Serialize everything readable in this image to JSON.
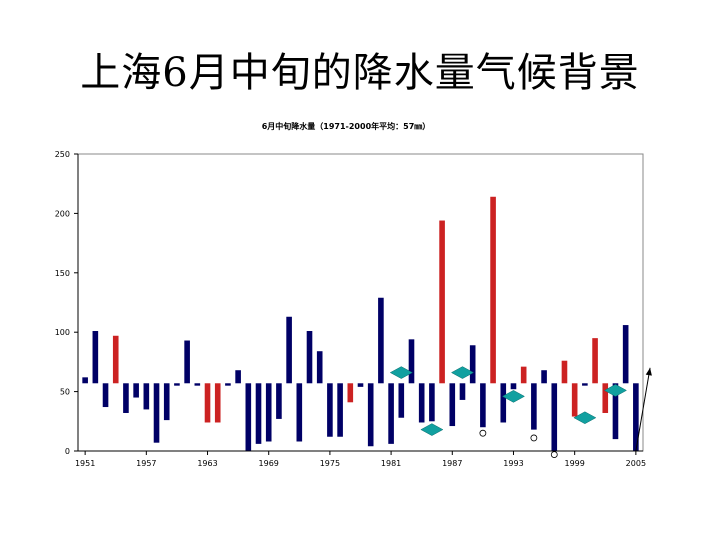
{
  "slide_title": "上海6月中旬的降水量气候背景",
  "colors": {
    "bar_normal": "#000066",
    "bar_highlight": "#cc2222",
    "marker_diamond": "#11a0a0",
    "axis": "#000000"
  },
  "chart_data": {
    "type": "bar",
    "title": "6月中旬降水量（1971-2000年平均：57㎜）",
    "baseline": 57,
    "ylim": [
      0,
      250
    ],
    "yticks": [
      0,
      50,
      100,
      150,
      200,
      250
    ],
    "xticks": [
      1951,
      1957,
      1963,
      1969,
      1975,
      1981,
      1987,
      1993,
      1999,
      2005
    ],
    "x": [
      1951,
      1952,
      1953,
      1954,
      1955,
      1956,
      1957,
      1958,
      1959,
      1960,
      1961,
      1962,
      1963,
      1964,
      1965,
      1966,
      1967,
      1968,
      1969,
      1970,
      1971,
      1972,
      1973,
      1974,
      1975,
      1976,
      1977,
      1978,
      1979,
      1980,
      1981,
      1982,
      1983,
      1984,
      1985,
      1986,
      1987,
      1988,
      1989,
      1990,
      1991,
      1992,
      1993,
      1994,
      1995,
      1996,
      1997,
      1998,
      1999,
      2000,
      2001,
      2002,
      2003,
      2004,
      2005
    ],
    "values": [
      62,
      101,
      37,
      97,
      32,
      45,
      35,
      7,
      26,
      55,
      93,
      55,
      24,
      24,
      55,
      68,
      0,
      6,
      8,
      27,
      113,
      8,
      101,
      84,
      12,
      12,
      41,
      54,
      4,
      129,
      6,
      28,
      94,
      24,
      25,
      194,
      21,
      43,
      89,
      20,
      214,
      24,
      52,
      71,
      18,
      68,
      0,
      76,
      29,
      55,
      95,
      32,
      10,
      106,
      0
    ],
    "highlight_years": [
      1954,
      1963,
      1964,
      1977,
      1986,
      1991,
      1994,
      1998,
      1999,
      2001,
      2002
    ],
    "diamond_markers": [
      {
        "x": 1982,
        "y": 66
      },
      {
        "x": 1985,
        "y": 18
      },
      {
        "x": 1988,
        "y": 66
      },
      {
        "x": 1993,
        "y": 46
      },
      {
        "x": 2000,
        "y": 28
      },
      {
        "x": 2003,
        "y": 51
      }
    ],
    "circle_markers": [
      {
        "x": 1990,
        "y": 15
      },
      {
        "x": 1995,
        "y": 11
      },
      {
        "x": 1997,
        "y": -3
      }
    ],
    "trend_arrow": {
      "from": [
        2005,
        0
      ],
      "to": [
        2006,
        70
      ]
    }
  }
}
